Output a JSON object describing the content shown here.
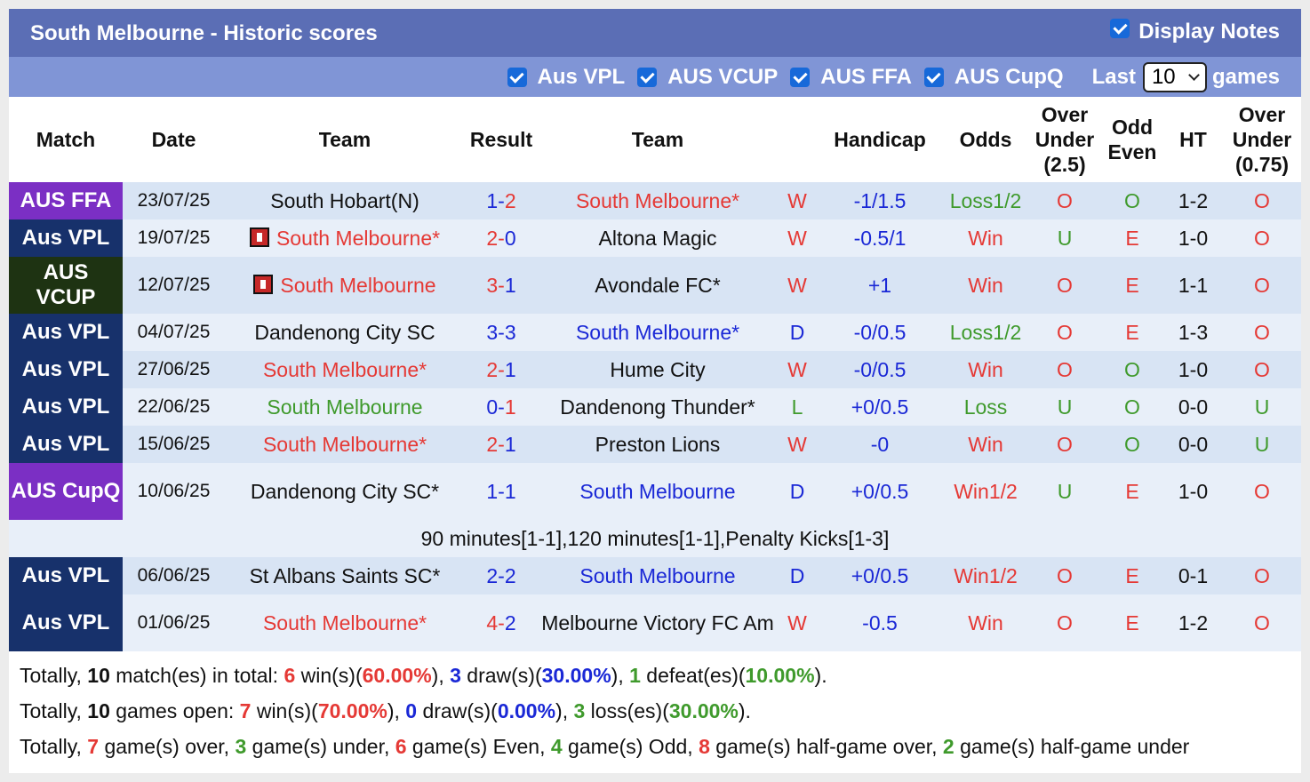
{
  "header": {
    "title": "South Melbourne - Historic scores",
    "display_notes_label": "Display Notes"
  },
  "filters": {
    "items": [
      "Aus VPL",
      "AUS VCUP",
      "AUS FFA",
      "AUS CupQ"
    ],
    "last_label": "Last",
    "last_value": "10",
    "games_label": "games"
  },
  "columns": [
    "Match",
    "Date",
    "Team",
    "Result",
    "Team",
    "",
    "Handicap",
    "Odds",
    "Over Under (2.5)",
    "Odd Even",
    "HT",
    "Over Under (0.75)"
  ],
  "colors": {
    "title_bar": "#5b6eb5",
    "filter_bar": "#8095d6",
    "AUS FFA": "#7b2fc4",
    "Aus VPL": "#17316b",
    "AUS VCUP": "#1e3312",
    "AUS CupQ": "#7b2fc4",
    "red": "#e53935",
    "blue": "#1a28d6",
    "green": "#3f9a2c"
  },
  "rows": [
    {
      "match": "AUS FFA",
      "date": "23/07/25",
      "home": "South Hobart(N)",
      "home_color": "dark",
      "home_icon": false,
      "r1": "1",
      "r1c": "blue",
      "r2": "2",
      "r2c": "red",
      "away": "South Melbourne*",
      "away_color": "red",
      "wl": "W",
      "wlc": "red",
      "handicap": "-1/1.5",
      "odds": "Loss1/2",
      "oddsc": "green",
      "ou": "O",
      "ouc": "red",
      "oe": "O",
      "oec": "green",
      "ht": "1-2",
      "ou2": "O",
      "ou2c": "red"
    },
    {
      "match": "Aus VPL",
      "date": "19/07/25",
      "home": "South Melbourne*",
      "home_color": "red",
      "home_icon": true,
      "r1": "2",
      "r1c": "red",
      "r2": "0",
      "r2c": "blue",
      "away": "Altona Magic",
      "away_color": "dark",
      "wl": "W",
      "wlc": "red",
      "handicap": "-0.5/1",
      "odds": "Win",
      "oddsc": "red",
      "ou": "U",
      "ouc": "green",
      "oe": "E",
      "oec": "red",
      "ht": "1-0",
      "ou2": "O",
      "ou2c": "red"
    },
    {
      "match": "AUS VCUP",
      "date": "12/07/25",
      "home": "South Melbourne",
      "home_color": "red",
      "home_icon": true,
      "r1": "3",
      "r1c": "red",
      "r2": "1",
      "r2c": "blue",
      "away": "Avondale FC*",
      "away_color": "dark",
      "wl": "W",
      "wlc": "red",
      "handicap": "+1",
      "odds": "Win",
      "oddsc": "red",
      "ou": "O",
      "ouc": "red",
      "oe": "E",
      "oec": "red",
      "ht": "1-1",
      "ou2": "O",
      "ou2c": "red"
    },
    {
      "match": "Aus VPL",
      "date": "04/07/25",
      "home": "Dandenong City SC",
      "home_color": "dark",
      "home_icon": false,
      "r1": "3",
      "r1c": "blue",
      "r2": "3",
      "r2c": "blue",
      "away": "South Melbourne*",
      "away_color": "blue",
      "wl": "D",
      "wlc": "blue",
      "handicap": "-0/0.5",
      "odds": "Loss1/2",
      "oddsc": "green",
      "ou": "O",
      "ouc": "red",
      "oe": "E",
      "oec": "red",
      "ht": "1-3",
      "ou2": "O",
      "ou2c": "red"
    },
    {
      "match": "Aus VPL",
      "date": "27/06/25",
      "home": "South Melbourne*",
      "home_color": "red",
      "home_icon": false,
      "r1": "2",
      "r1c": "red",
      "r2": "1",
      "r2c": "blue",
      "away": "Hume City",
      "away_color": "dark",
      "wl": "W",
      "wlc": "red",
      "handicap": "-0/0.5",
      "odds": "Win",
      "oddsc": "red",
      "ou": "O",
      "ouc": "red",
      "oe": "O",
      "oec": "green",
      "ht": "1-0",
      "ou2": "O",
      "ou2c": "red"
    },
    {
      "match": "Aus VPL",
      "date": "22/06/25",
      "home": "South Melbourne",
      "home_color": "green",
      "home_icon": false,
      "r1": "0",
      "r1c": "blue",
      "r2": "1",
      "r2c": "red",
      "away": "Dandenong Thunder*",
      "away_color": "dark",
      "wl": "L",
      "wlc": "green",
      "handicap": "+0/0.5",
      "odds": "Loss",
      "oddsc": "green",
      "ou": "U",
      "ouc": "green",
      "oe": "O",
      "oec": "green",
      "ht": "0-0",
      "ou2": "U",
      "ou2c": "green"
    },
    {
      "match": "Aus VPL",
      "date": "15/06/25",
      "home": "South Melbourne*",
      "home_color": "red",
      "home_icon": false,
      "r1": "2",
      "r1c": "red",
      "r2": "1",
      "r2c": "blue",
      "away": "Preston Lions",
      "away_color": "dark",
      "wl": "W",
      "wlc": "red",
      "handicap": "-0",
      "odds": "Win",
      "oddsc": "red",
      "ou": "O",
      "ouc": "red",
      "oe": "O",
      "oec": "green",
      "ht": "0-0",
      "ou2": "U",
      "ou2c": "green"
    },
    {
      "match": "AUS CupQ",
      "date": "10/06/25",
      "home": "Dandenong City SC*",
      "home_color": "dark",
      "home_icon": false,
      "r1": "1",
      "r1c": "blue",
      "r2": "1",
      "r2c": "blue",
      "away": "South Melbourne",
      "away_color": "blue",
      "wl": "D",
      "wlc": "blue",
      "handicap": "+0/0.5",
      "odds": "Win1/2",
      "oddsc": "red",
      "ou": "U",
      "ouc": "green",
      "oe": "E",
      "oec": "red",
      "ht": "1-0",
      "ou2": "O",
      "ou2c": "red",
      "note": "90 minutes[1-1],120 minutes[1-1],Penalty Kicks[1-3]"
    },
    {
      "match": "Aus VPL",
      "date": "06/06/25",
      "home": "St Albans Saints SC*",
      "home_color": "dark",
      "home_icon": false,
      "r1": "2",
      "r1c": "blue",
      "r2": "2",
      "r2c": "blue",
      "away": "South Melbourne",
      "away_color": "blue",
      "wl": "D",
      "wlc": "blue",
      "handicap": "+0/0.5",
      "odds": "Win1/2",
      "oddsc": "red",
      "ou": "O",
      "ouc": "red",
      "oe": "E",
      "oec": "red",
      "ht": "0-1",
      "ou2": "O",
      "ou2c": "red"
    },
    {
      "match": "Aus VPL",
      "date": "01/06/25",
      "home": "South Melbourne*",
      "home_color": "red",
      "home_icon": false,
      "r1": "4",
      "r1c": "red",
      "r2": "2",
      "r2c": "blue",
      "away": "Melbourne Victory FC Am",
      "away_color": "dark",
      "wl": "W",
      "wlc": "red",
      "handicap": "-0.5",
      "odds": "Win",
      "oddsc": "red",
      "ou": "O",
      "ouc": "red",
      "oe": "E",
      "oec": "red",
      "ht": "1-2",
      "ou2": "O",
      "ou2c": "red"
    }
  ],
  "summary": {
    "l1": [
      [
        "k",
        "Totally, "
      ],
      [
        "b",
        "10"
      ],
      [
        "k",
        " match(es) in total: "
      ],
      [
        "r",
        "6"
      ],
      [
        "k",
        " win(s)("
      ],
      [
        "r",
        "60.00%"
      ],
      [
        "k",
        "), "
      ],
      [
        "u",
        "3"
      ],
      [
        "k",
        " draw(s)("
      ],
      [
        "u",
        "30.00%"
      ],
      [
        "k",
        "), "
      ],
      [
        "g",
        "1"
      ],
      [
        "k",
        " defeat(es)("
      ],
      [
        "g",
        "10.00%"
      ],
      [
        "k",
        ")."
      ]
    ],
    "l2": [
      [
        "k",
        "Totally, "
      ],
      [
        "b",
        "10"
      ],
      [
        "k",
        " games open: "
      ],
      [
        "r",
        "7"
      ],
      [
        "k",
        " win(s)("
      ],
      [
        "r",
        "70.00%"
      ],
      [
        "k",
        "), "
      ],
      [
        "u",
        "0"
      ],
      [
        "k",
        " draw(s)("
      ],
      [
        "u",
        "0.00%"
      ],
      [
        "k",
        "), "
      ],
      [
        "g",
        "3"
      ],
      [
        "k",
        " loss(es)("
      ],
      [
        "g",
        "30.00%"
      ],
      [
        "k",
        ")."
      ]
    ],
    "l3": [
      [
        "k",
        "Totally, "
      ],
      [
        "r",
        "7"
      ],
      [
        "k",
        " game(s) over, "
      ],
      [
        "g",
        "3"
      ],
      [
        "k",
        " game(s) under, "
      ],
      [
        "r",
        "6"
      ],
      [
        "k",
        " game(s) Even, "
      ],
      [
        "g",
        "4"
      ],
      [
        "k",
        " game(s) Odd, "
      ],
      [
        "r",
        "8"
      ],
      [
        "k",
        " game(s) half-game over, "
      ],
      [
        "g",
        "2"
      ],
      [
        "k",
        " game(s) half-game under"
      ]
    ]
  }
}
